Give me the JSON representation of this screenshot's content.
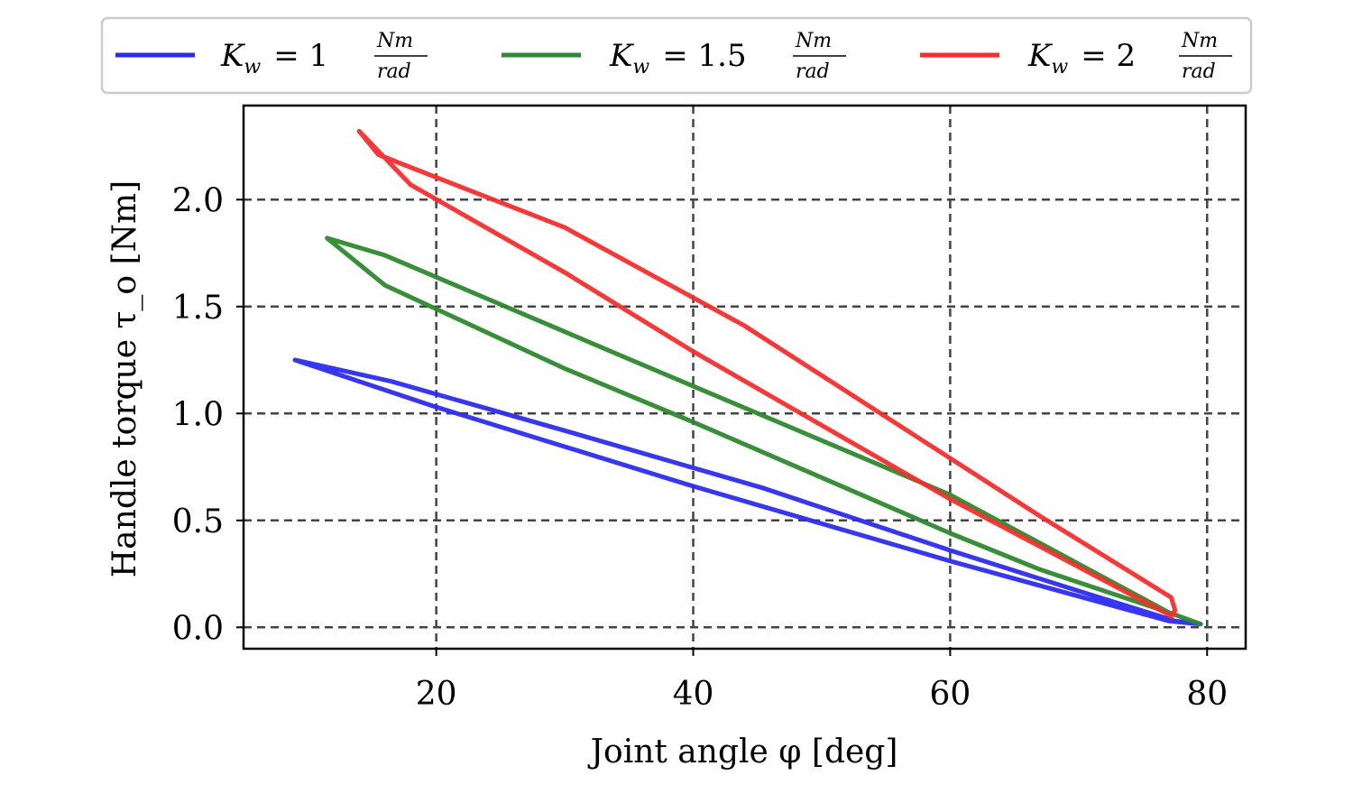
{
  "chart_data": {
    "type": "line",
    "xlabel": "Joint angle φ [deg]",
    "ylabel": "Handle torque τ_o [Nm]",
    "xlim": [
      5,
      83
    ],
    "ylim": [
      -0.1,
      2.44
    ],
    "xticks": [
      20,
      40,
      60,
      80
    ],
    "yticks": [
      0.0,
      0.5,
      1.0,
      1.5,
      2.0
    ],
    "xtick_labels": [
      "20",
      "40",
      "60",
      "80"
    ],
    "ytick_labels": [
      "0.0",
      "0.5",
      "1.0",
      "1.5",
      "2.0"
    ],
    "grid": true,
    "grid_style": "dashed",
    "legend_position": "top",
    "legend": [
      {
        "prefix": "K",
        "sub": "w",
        "eq": "= 1",
        "num": "Nm",
        "den": "rad",
        "color": "#2a2aff"
      },
      {
        "prefix": "K",
        "sub": "w",
        "eq": "= 1.5",
        "num": "Nm",
        "den": "rad",
        "color": "#2b8a2b"
      },
      {
        "prefix": "K",
        "sub": "w",
        "eq": "= 2",
        "num": "Nm",
        "den": "rad",
        "color": "#ff2a2a"
      }
    ],
    "series": [
      {
        "name": "K_w = 1 Nm/rad",
        "color": "#2a2aff",
        "x": [
          9.0,
          16.5,
          30,
          45.5,
          60,
          70,
          77.5,
          79.5,
          77.0,
          60,
          40,
          20,
          9.0
        ],
        "y": [
          1.25,
          1.15,
          0.92,
          0.65,
          0.36,
          0.17,
          0.03,
          0.015,
          0.03,
          0.31,
          0.66,
          1.03,
          1.25
        ]
      },
      {
        "name": "K_w = 1.5 Nm/rad",
        "color": "#2b8a2b",
        "x": [
          11.5,
          16.0,
          30,
          40,
          60,
          67.0,
          77.0,
          79.5,
          77.0,
          60,
          34,
          16.0,
          11.5
        ],
        "y": [
          1.82,
          1.6,
          1.21,
          0.96,
          0.44,
          0.27,
          0.07,
          0.015,
          0.07,
          0.62,
          1.28,
          1.74,
          1.82
        ]
      },
      {
        "name": "K_w = 2 Nm/rad",
        "color": "#ff2a2a",
        "x": [
          14.0,
          18.0,
          30,
          40,
          60,
          77.0,
          77.2,
          77.5,
          77.2,
          67.0,
          44.0,
          30,
          15.5,
          14.0
        ],
        "y": [
          2.32,
          2.07,
          1.66,
          1.29,
          0.6,
          0.06,
          0.05,
          0.08,
          0.14,
          0.52,
          1.41,
          1.87,
          2.21,
          2.32
        ]
      }
    ]
  }
}
